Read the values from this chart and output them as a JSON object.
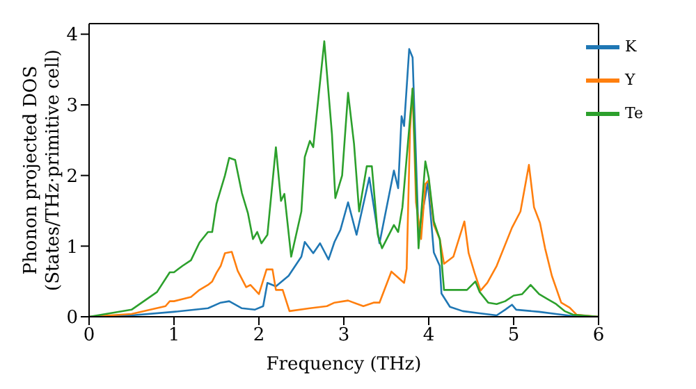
{
  "chart_data": {
    "type": "line",
    "xlabel": "Frequency (THz)",
    "ylabel": "Phonon projected DOS (States/THz·primitive cell)",
    "xlim": [
      0,
      6
    ],
    "ylim": [
      0,
      4.15
    ],
    "xticks": [
      0,
      1,
      2,
      3,
      4,
      5,
      6
    ],
    "yticks": [
      0,
      1,
      2,
      3,
      4
    ],
    "legend": "top right",
    "grid": false,
    "marker": "none",
    "line_style": "solid",
    "series": [
      {
        "name": "K",
        "color": "#1f77b4",
        "x": [
          0,
          0.5,
          1,
          1.4,
          1.55,
          1.65,
          1.8,
          1.95,
          2.05,
          2.1,
          2.2,
          2.35,
          2.5,
          2.54,
          2.64,
          2.72,
          2.82,
          2.89,
          2.96,
          3.05,
          3.15,
          3.3,
          3.42,
          3.59,
          3.64,
          3.68,
          3.71,
          3.77,
          3.81,
          3.88,
          3.99,
          4.06,
          4.13,
          4.15,
          4.25,
          4.4,
          4.6,
          4.8,
          4.9,
          4.98,
          5.03,
          5.3,
          5.5,
          5.7,
          6
        ],
        "values": [
          0,
          0.02,
          0.07,
          0.12,
          0.2,
          0.22,
          0.12,
          0.1,
          0.15,
          0.48,
          0.43,
          0.58,
          0.85,
          1.06,
          0.9,
          1.04,
          0.81,
          1.06,
          1.23,
          1.62,
          1.16,
          1.97,
          1.04,
          2.07,
          1.82,
          2.84,
          2.7,
          3.79,
          3.67,
          1.16,
          1.91,
          0.91,
          0.72,
          0.33,
          0.14,
          0.08,
          0.05,
          0.02,
          0.1,
          0.17,
          0.1,
          0.07,
          0.04,
          0.01,
          0
        ]
      },
      {
        "name": "Y",
        "color": "#ff7f0e",
        "x": [
          0,
          0.5,
          0.9,
          0.95,
          1,
          1.2,
          1.3,
          1.4,
          1.45,
          1.5,
          1.55,
          1.6,
          1.68,
          1.75,
          1.85,
          1.9,
          2,
          2.09,
          2.16,
          2.2,
          2.28,
          2.36,
          2.6,
          2.8,
          2.89,
          3.05,
          3.23,
          3.35,
          3.42,
          3.56,
          3.71,
          3.74,
          3.78,
          3.81,
          3.85,
          3.91,
          3.96,
          4,
          4.06,
          4.13,
          4.18,
          4.29,
          4.42,
          4.47,
          4.54,
          4.61,
          4.69,
          4.8,
          4.98,
          5.08,
          5.18,
          5.24,
          5.31,
          5.37,
          5.45,
          5.56,
          5.66,
          5.74,
          6
        ],
        "values": [
          0,
          0.04,
          0.15,
          0.22,
          0.22,
          0.28,
          0.38,
          0.45,
          0.5,
          0.62,
          0.72,
          0.9,
          0.92,
          0.65,
          0.42,
          0.45,
          0.32,
          0.67,
          0.67,
          0.38,
          0.38,
          0.08,
          0.12,
          0.15,
          0.2,
          0.23,
          0.15,
          0.2,
          0.2,
          0.64,
          0.48,
          0.68,
          2.65,
          3.23,
          1.62,
          1.1,
          1.88,
          1.93,
          1.3,
          1.1,
          0.75,
          0.85,
          1.35,
          0.9,
          0.62,
          0.37,
          0.48,
          0.72,
          1.26,
          1.49,
          2.15,
          1.55,
          1.33,
          0.97,
          0.58,
          0.2,
          0.13,
          0.03,
          0
        ]
      },
      {
        "name": "Te",
        "color": "#2ca02c",
        "x": [
          0,
          0.5,
          0.8,
          0.95,
          1,
          1.1,
          1.2,
          1.3,
          1.4,
          1.45,
          1.5,
          1.6,
          1.65,
          1.72,
          1.8,
          1.87,
          1.93,
          1.98,
          2.03,
          2.1,
          2.2,
          2.26,
          2.3,
          2.38,
          2.5,
          2.54,
          2.6,
          2.64,
          2.77,
          2.86,
          2.9,
          2.98,
          3.05,
          3.12,
          3.18,
          3.27,
          3.33,
          3.4,
          3.45,
          3.59,
          3.64,
          3.69,
          3.81,
          3.88,
          3.96,
          4,
          4.06,
          4.13,
          4.18,
          4.3,
          4.45,
          4.55,
          4.6,
          4.7,
          4.8,
          4.9,
          5,
          5.1,
          5.2,
          5.3,
          5.4,
          5.5,
          5.6,
          5.7,
          6
        ],
        "values": [
          0,
          0.1,
          0.35,
          0.63,
          0.63,
          0.72,
          0.8,
          1.05,
          1.2,
          1.2,
          1.6,
          2,
          2.25,
          2.22,
          1.75,
          1.47,
          1.1,
          1.2,
          1.04,
          1.16,
          2.4,
          1.64,
          1.74,
          0.85,
          1.49,
          2.26,
          2.49,
          2.4,
          3.9,
          2.59,
          1.68,
          2,
          3.17,
          2.45,
          1.49,
          2.13,
          2.13,
          1.16,
          0.97,
          1.3,
          1.2,
          1.55,
          3.23,
          0.97,
          2.2,
          1.97,
          1.35,
          1.1,
          0.38,
          0.38,
          0.38,
          0.5,
          0.35,
          0.2,
          0.18,
          0.22,
          0.3,
          0.32,
          0.45,
          0.32,
          0.25,
          0.18,
          0.08,
          0.03,
          0
        ]
      }
    ]
  }
}
